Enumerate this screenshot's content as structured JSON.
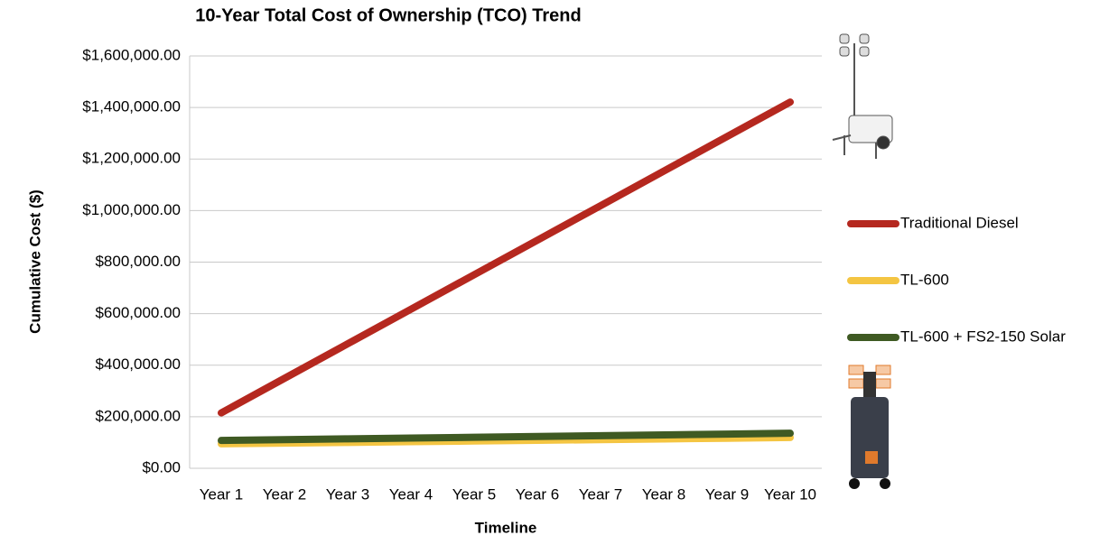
{
  "chart_data": {
    "type": "line",
    "title": "10-Year Total Cost of Ownership (TCO) Trend",
    "x_label": "Timeline",
    "y_label": "Cumulative Cost ($)",
    "categories": [
      "Year 1",
      "Year 2",
      "Year 3",
      "Year 4",
      "Year 5",
      "Year 6",
      "Year 7",
      "Year 8",
      "Year 9",
      "Year 10"
    ],
    "series": [
      {
        "name": "Traditional Diesel",
        "color": "#b5281f",
        "values": [
          215000,
          349000,
          483000,
          617000,
          751000,
          885000,
          1019000,
          1153000,
          1287000,
          1421000
        ]
      },
      {
        "name": "TL-600",
        "color": "#f4c542",
        "values": [
          95000,
          97700,
          100400,
          103100,
          105800,
          108500,
          111200,
          113900,
          116600,
          119300
        ]
      },
      {
        "name": "TL-600 + FS2-150 Solar",
        "color": "#3f5a23",
        "values": [
          108000,
          111100,
          114200,
          117300,
          120400,
          123500,
          126600,
          129700,
          132800,
          135900
        ]
      }
    ],
    "ylim": [
      0,
      1600000
    ],
    "yticks": [
      {
        "value": 0,
        "label": "$0.00"
      },
      {
        "value": 200000,
        "label": "$200,000.00"
      },
      {
        "value": 400000,
        "label": "$400,000.00"
      },
      {
        "value": 600000,
        "label": "$600,000.00"
      },
      {
        "value": 800000,
        "label": "$800,000.00"
      },
      {
        "value": 1000000,
        "label": "$1,000,000.00"
      },
      {
        "value": 1200000,
        "label": "$1,200,000.00"
      },
      {
        "value": 1400000,
        "label": "$1,400,000.00"
      },
      {
        "value": 1600000,
        "label": "$1,600,000.00"
      }
    ],
    "grid": true,
    "legend": "right"
  }
}
